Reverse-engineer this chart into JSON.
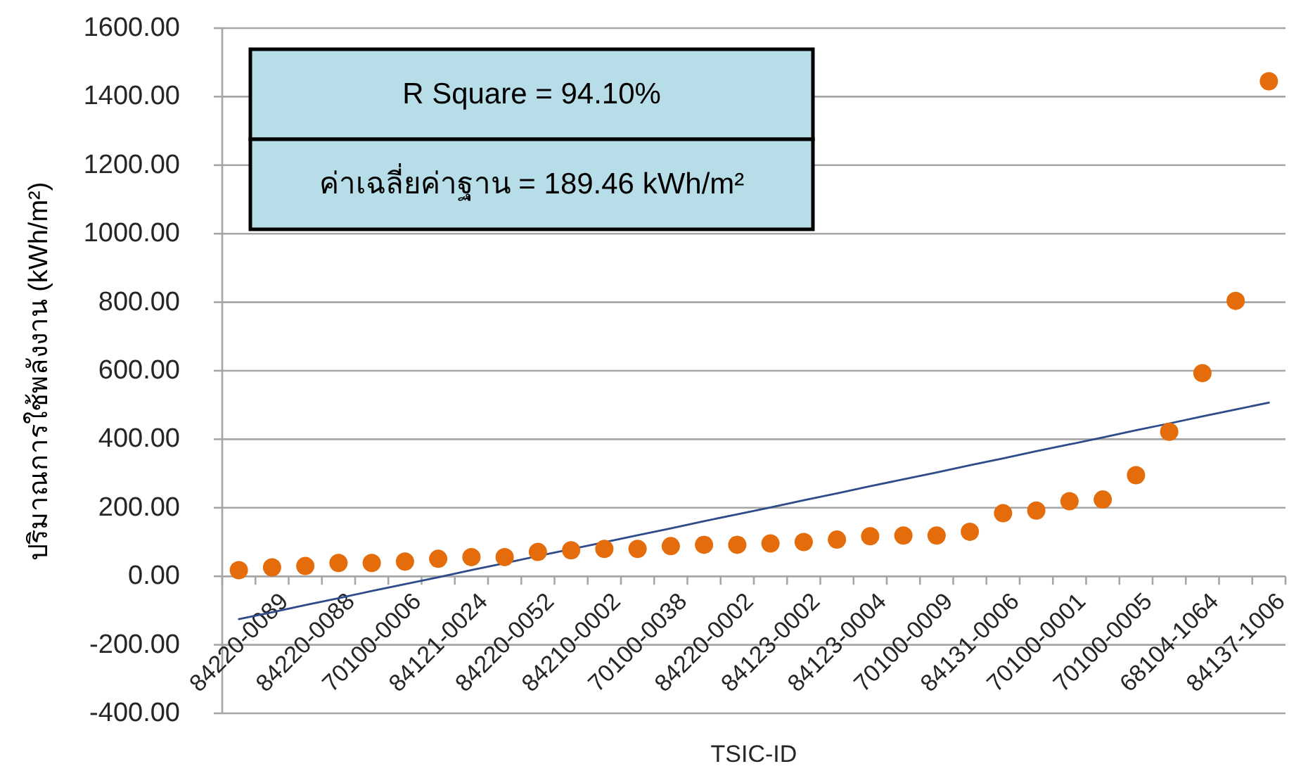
{
  "chart_data": {
    "type": "scatter",
    "xlabel": "TSIC-ID",
    "ylabel": "ปริมาณการใช้พลังงาน (kWh/m²)",
    "annotations": [
      "R Square = 94.10%",
      "ค่าเฉลี่ยค่าฐาน = 189.46 kWh/m²"
    ],
    "categories": [
      "84220-0089",
      null,
      "84220-0088",
      null,
      "70100-0006",
      null,
      "84121-0024",
      null,
      "84220-0052",
      null,
      "84210-0002",
      null,
      "70100-0038",
      null,
      "84220-0002",
      null,
      "84123-0002",
      null,
      "84123-0004",
      null,
      "70100-0009",
      null,
      "84131-0006",
      null,
      "70100-0001",
      null,
      "70100-0005",
      null,
      "68104-1064",
      null,
      "84137-1006",
      null
    ],
    "series": [
      {
        "type": "scatter",
        "color": "#e46c0a",
        "marker": "circle",
        "values": [
          18,
          26,
          30,
          39,
          39,
          43,
          51,
          56,
          56,
          71,
          76,
          80,
          80,
          88,
          92,
          92,
          96,
          100,
          107,
          117,
          119,
          119,
          130,
          184,
          192,
          219,
          224,
          295,
          422,
          593,
          804,
          1445
        ]
      },
      {
        "type": "line",
        "color": "#2e4b8a",
        "marker": "none",
        "values": [
          -125,
          -105,
          -84,
          -64,
          -43,
          -23,
          -3,
          18,
          38,
          59,
          79,
          99,
          120,
          140,
          161,
          181,
          201,
          222,
          242,
          263,
          283,
          303,
          324,
          344,
          365,
          385,
          405,
          426,
          446,
          467,
          487,
          507
        ]
      }
    ],
    "ylim": [
      -400,
      1600
    ],
    "yticks": [
      {
        "value": -400,
        "label": "-400.00"
      },
      {
        "value": -200,
        "label": "-200.00"
      },
      {
        "value": 0,
        "label": "0.00"
      },
      {
        "value": 200,
        "label": "200.00"
      },
      {
        "value": 400,
        "label": "400.00"
      },
      {
        "value": 600,
        "label": "600.00"
      },
      {
        "value": 800,
        "label": "800.00"
      },
      {
        "value": 1000,
        "label": "1000.00"
      },
      {
        "value": 1200,
        "label": "1200.00"
      },
      {
        "value": 1400,
        "label": "1400.00"
      },
      {
        "value": 1600,
        "label": "1600.00"
      }
    ],
    "grid": "y"
  }
}
